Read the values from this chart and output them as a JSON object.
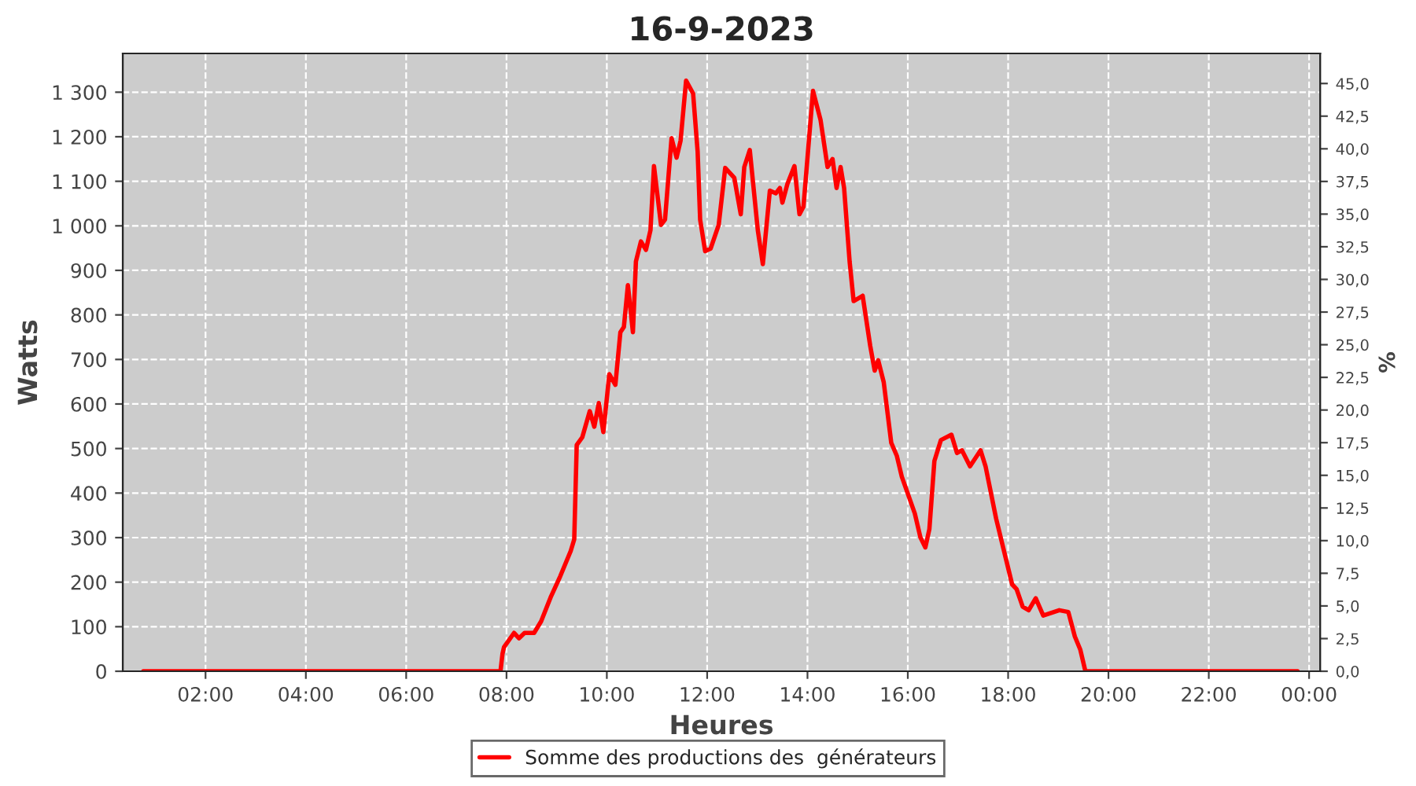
{
  "chart_data": {
    "type": "line",
    "title": "16-9-2023",
    "xlabel": "Heures",
    "ylabel": "Watts",
    "y2label": "%",
    "xlim": [
      0.35,
      24.22
    ],
    "xticks": [
      {
        "value": 2,
        "label": "02:00"
      },
      {
        "value": 4,
        "label": "04:00"
      },
      {
        "value": 6,
        "label": "06:00"
      },
      {
        "value": 8,
        "label": "08:00"
      },
      {
        "value": 10,
        "label": "10:00"
      },
      {
        "value": 12,
        "label": "12:00"
      },
      {
        "value": 14,
        "label": "14:00"
      },
      {
        "value": 16,
        "label": "16:00"
      },
      {
        "value": 18,
        "label": "18:00"
      },
      {
        "value": 20,
        "label": "20:00"
      },
      {
        "value": 22,
        "label": "22:00"
      },
      {
        "value": 24,
        "label": "00:00"
      }
    ],
    "ylim": [
      0,
      1387
    ],
    "yticks": [
      0,
      100,
      200,
      300,
      400,
      500,
      600,
      700,
      800,
      900,
      {
        "value": 1000,
        "label": "1 000"
      },
      {
        "value": 1100,
        "label": "1 100"
      },
      {
        "value": 1200,
        "label": "1 200"
      },
      {
        "value": 1300,
        "label": "1 300"
      }
    ],
    "y2lim": [
      0,
      47.3
    ],
    "y2ticks": [
      {
        "value": 0,
        "label": "0,0"
      },
      {
        "value": 2.5,
        "label": "2,5"
      },
      {
        "value": 5,
        "label": "5,0"
      },
      {
        "value": 7.5,
        "label": "7,5"
      },
      {
        "value": 10,
        "label": "10,0"
      },
      {
        "value": 12.5,
        "label": "12,5"
      },
      {
        "value": 15,
        "label": "15,0"
      },
      {
        "value": 17.5,
        "label": "17,5"
      },
      {
        "value": 20,
        "label": "20,0"
      },
      {
        "value": 22.5,
        "label": "22,5"
      },
      {
        "value": 25,
        "label": "25,0"
      },
      {
        "value": 27.5,
        "label": "27,5"
      },
      {
        "value": 30,
        "label": "30,0"
      },
      {
        "value": 32.5,
        "label": "32,5"
      },
      {
        "value": 35,
        "label": "35,0"
      },
      {
        "value": 37.5,
        "label": "37,5"
      },
      {
        "value": 40,
        "label": "40,0"
      },
      {
        "value": 42.5,
        "label": "42,5"
      },
      {
        "value": 45,
        "label": "45,0"
      }
    ],
    "grid": true,
    "legend": "bottom",
    "line_style": "solid",
    "series": [
      {
        "name": "Somme des productions des  générateurs",
        "color": "#ff0000",
        "x": [
          0.76,
          3,
          5,
          7,
          7.88,
          7.92,
          7.95,
          8.15,
          8.25,
          8.36,
          8.55,
          8.69,
          8.88,
          9.07,
          9.28,
          9.35,
          9.4,
          9.51,
          9.66,
          9.75,
          9.84,
          9.93,
          10.05,
          10.17,
          10.27,
          10.34,
          10.42,
          10.52,
          10.58,
          10.68,
          10.78,
          10.87,
          10.94,
          11.08,
          11.16,
          11.29,
          11.39,
          11.47,
          11.58,
          11.72,
          11.81,
          11.86,
          11.96,
          12.07,
          12.23,
          12.36,
          12.54,
          12.67,
          12.74,
          12.85,
          13.01,
          13.11,
          13.25,
          13.37,
          13.45,
          13.5,
          13.6,
          13.74,
          13.84,
          13.92,
          14.11,
          14.26,
          14.4,
          14.5,
          14.58,
          14.66,
          14.73,
          14.84,
          14.92,
          15.1,
          15.25,
          15.34,
          15.41,
          15.52,
          15.67,
          15.78,
          15.88,
          16.14,
          16.25,
          16.35,
          16.43,
          16.53,
          16.66,
          16.87,
          16.98,
          17.08,
          17.24,
          17.45,
          17.55,
          17.76,
          18.08,
          18.17,
          18.29,
          18.41,
          18.55,
          18.7,
          19.02,
          19.2,
          19.33,
          19.44,
          19.54,
          21,
          22.5,
          23.77
        ],
        "values": [
          0,
          0,
          0,
          0,
          0,
          39,
          54,
          86,
          74,
          86,
          86,
          112,
          166,
          213,
          270,
          296,
          508,
          525,
          584,
          549,
          602,
          537,
          667,
          643,
          761,
          773,
          867,
          761,
          920,
          965,
          946,
          990,
          1134,
          1002,
          1014,
          1197,
          1153,
          1191,
          1326,
          1297,
          1167,
          1014,
          943,
          949,
          1002,
          1130,
          1108,
          1026,
          1132,
          1170,
          990,
          914,
          1079,
          1073,
          1085,
          1052,
          1094,
          1134,
          1026,
          1043,
          1303,
          1238,
          1132,
          1150,
          1085,
          1132,
          1085,
          920,
          831,
          843,
          731,
          675,
          698,
          649,
          513,
          484,
          437,
          354,
          301,
          278,
          319,
          472,
          519,
          531,
          490,
          496,
          460,
          496,
          460,
          343,
          195,
          184,
          145,
          137,
          164,
          125,
          137,
          133,
          78,
          48,
          0,
          0,
          0,
          0
        ]
      }
    ]
  }
}
